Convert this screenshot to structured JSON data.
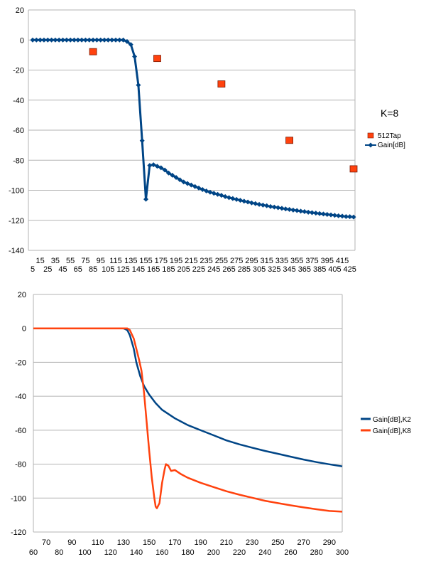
{
  "chart_data": [
    {
      "type": "line",
      "annotation": "K=8",
      "legend_position": "right",
      "x_tick_labels_row1": [
        "15",
        "35",
        "55",
        "75",
        "95",
        "115",
        "135",
        "155",
        "175",
        "195",
        "215",
        "235",
        "255",
        "275",
        "295",
        "315",
        "335",
        "355",
        "375",
        "395",
        "415"
      ],
      "x_tick_labels_row2": [
        "5",
        "25",
        "45",
        "65",
        "85",
        "105",
        "125",
        "145",
        "165",
        "185",
        "205",
        "225",
        "245",
        "265",
        "285",
        "305",
        "325",
        "345",
        "365",
        "385",
        "405",
        "425"
      ],
      "y_ticks": [
        20,
        0,
        -20,
        -40,
        -60,
        -80,
        -100,
        -120,
        -140
      ],
      "ylim": [
        -140,
        20
      ],
      "xlim": [
        5,
        430
      ],
      "grid": "horizontal",
      "series": [
        {
          "name": "512Tap",
          "color": "#ff420e",
          "marker": "square",
          "points": [
            [
              85,
              -8
            ],
            [
              170,
              -12.5
            ],
            [
              255,
              -29.5
            ],
            [
              345,
              -67
            ],
            [
              430,
              -86
            ]
          ]
        },
        {
          "name": "Gain[dB]",
          "color": "#004586",
          "marker": "diamond",
          "points": [
            [
              5,
              0
            ],
            [
              10,
              0
            ],
            [
              15,
              0
            ],
            [
              20,
              0
            ],
            [
              25,
              0
            ],
            [
              30,
              0
            ],
            [
              35,
              0
            ],
            [
              40,
              0
            ],
            [
              45,
              0
            ],
            [
              50,
              0
            ],
            [
              55,
              0
            ],
            [
              60,
              0
            ],
            [
              65,
              0
            ],
            [
              70,
              0
            ],
            [
              75,
              0
            ],
            [
              80,
              0
            ],
            [
              85,
              0
            ],
            [
              90,
              0
            ],
            [
              95,
              0
            ],
            [
              100,
              0
            ],
            [
              105,
              0
            ],
            [
              110,
              0
            ],
            [
              115,
              0
            ],
            [
              120,
              0
            ],
            [
              125,
              0
            ],
            [
              130,
              -1
            ],
            [
              135,
              -3
            ],
            [
              140,
              -11
            ],
            [
              145,
              -30
            ],
            [
              150,
              -67
            ],
            [
              155,
              -106
            ],
            [
              160,
              -83.5
            ],
            [
              165,
              -83
            ],
            [
              170,
              -84
            ],
            [
              175,
              -85
            ],
            [
              180,
              -86.5
            ],
            [
              185,
              -88.5
            ],
            [
              190,
              -90
            ],
            [
              195,
              -91.5
            ],
            [
              200,
              -93
            ],
            [
              205,
              -94.5
            ],
            [
              210,
              -95.5
            ],
            [
              215,
              -96.5
            ],
            [
              220,
              -97.5
            ],
            [
              225,
              -98.5
            ],
            [
              230,
              -99.5
            ],
            [
              235,
              -100.5
            ],
            [
              240,
              -101.3
            ],
            [
              245,
              -102
            ],
            [
              250,
              -102.7
            ],
            [
              255,
              -103.4
            ],
            [
              260,
              -104.2
            ],
            [
              265,
              -104.9
            ],
            [
              270,
              -105.5
            ],
            [
              275,
              -106.1
            ],
            [
              280,
              -106.7
            ],
            [
              285,
              -107.3
            ],
            [
              290,
              -107.8
            ],
            [
              295,
              -108.4
            ],
            [
              300,
              -108.9
            ],
            [
              305,
              -109.4
            ],
            [
              310,
              -109.9
            ],
            [
              315,
              -110.3
            ],
            [
              320,
              -110.8
            ],
            [
              325,
              -111.2
            ],
            [
              330,
              -111.6
            ],
            [
              335,
              -112
            ],
            [
              340,
              -112.4
            ],
            [
              345,
              -112.8
            ],
            [
              350,
              -113.2
            ],
            [
              355,
              -113.5
            ],
            [
              360,
              -113.9
            ],
            [
              365,
              -114.2
            ],
            [
              370,
              -114.6
            ],
            [
              375,
              -114.9
            ],
            [
              380,
              -115.2
            ],
            [
              385,
              -115.5
            ],
            [
              390,
              -115.8
            ],
            [
              395,
              -116.1
            ],
            [
              400,
              -116.4
            ],
            [
              405,
              -116.7
            ],
            [
              410,
              -117
            ],
            [
              415,
              -117.2
            ],
            [
              420,
              -117.5
            ],
            [
              425,
              -117.6
            ],
            [
              430,
              -117.8
            ]
          ]
        }
      ]
    },
    {
      "type": "line",
      "legend_position": "right",
      "x_ticks_top": [
        70,
        90,
        110,
        130,
        150,
        170,
        190,
        210,
        230,
        250,
        270,
        290
      ],
      "x_ticks_bottom": [
        60,
        80,
        100,
        120,
        140,
        160,
        180,
        200,
        220,
        240,
        260,
        280,
        300
      ],
      "y_ticks": [
        20,
        0,
        -20,
        -40,
        -60,
        -80,
        -100,
        -120
      ],
      "ylim": [
        -120,
        20
      ],
      "xlim": [
        60,
        300
      ],
      "grid": "horizontal",
      "series": [
        {
          "name": "Gain[dB],K2",
          "color": "#004586",
          "points": [
            [
              60,
              0
            ],
            [
              100,
              0
            ],
            [
              125,
              0
            ],
            [
              128,
              0
            ],
            [
              130,
              0
            ],
            [
              133,
              -1
            ],
            [
              135,
              -4
            ],
            [
              138,
              -12
            ],
            [
              140,
              -20
            ],
            [
              143,
              -28
            ],
            [
              146,
              -34
            ],
            [
              150,
              -39
            ],
            [
              155,
              -44
            ],
            [
              160,
              -48
            ],
            [
              170,
              -53
            ],
            [
              180,
              -57
            ],
            [
              190,
              -60
            ],
            [
              200,
              -63
            ],
            [
              210,
              -66
            ],
            [
              220,
              -68.3
            ],
            [
              230,
              -70.3
            ],
            [
              240,
              -72.2
            ],
            [
              250,
              -73.9
            ],
            [
              260,
              -75.6
            ],
            [
              270,
              -77.3
            ],
            [
              280,
              -78.8
            ],
            [
              290,
              -80.1
            ],
            [
              300,
              -81.3
            ]
          ]
        },
        {
          "name": "Gain[dB],K8",
          "color": "#ff420e",
          "points": [
            [
              60,
              0
            ],
            [
              100,
              0
            ],
            [
              125,
              0
            ],
            [
              128,
              0
            ],
            [
              130,
              0
            ],
            [
              133,
              0
            ],
            [
              135,
              -1
            ],
            [
              138,
              -6
            ],
            [
              140,
              -12
            ],
            [
              142,
              -18
            ],
            [
              144,
              -25
            ],
            [
              146,
              -38
            ],
            [
              148,
              -55
            ],
            [
              150,
              -72
            ],
            [
              152,
              -88
            ],
            [
              154,
              -100
            ],
            [
              155,
              -105
            ],
            [
              156,
              -106
            ],
            [
              158,
              -103
            ],
            [
              160,
              -91
            ],
            [
              162,
              -83
            ],
            [
              163,
              -80
            ],
            [
              165,
              -81
            ],
            [
              167,
              -84
            ],
            [
              170,
              -83.5
            ],
            [
              175,
              -86
            ],
            [
              180,
              -88
            ],
            [
              190,
              -91
            ],
            [
              200,
              -93.5
            ],
            [
              210,
              -96
            ],
            [
              220,
              -98
            ],
            [
              230,
              -99.8
            ],
            [
              240,
              -101.6
            ],
            [
              250,
              -103
            ],
            [
              260,
              -104.3
            ],
            [
              270,
              -105.5
            ],
            [
              280,
              -106.6
            ],
            [
              290,
              -107.6
            ],
            [
              300,
              -108
            ]
          ]
        }
      ]
    }
  ]
}
